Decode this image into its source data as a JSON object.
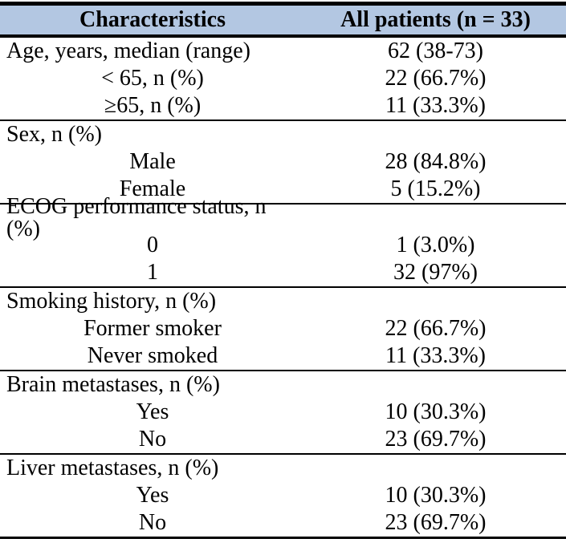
{
  "colors": {
    "header_bg": "#b3c7e2",
    "border": "#000000",
    "text": "#000000"
  },
  "table": {
    "header": {
      "characteristics": "Characteristics",
      "all_patients": "All patients (n = 33)"
    },
    "sections": [
      {
        "name": "age",
        "rows": [
          {
            "label": "Age, years, median (range)",
            "value": "62 (38-73)"
          },
          {
            "label": "< 65, n (%)",
            "value": "22 (66.7%)"
          },
          {
            "label": "≥65, n (%)",
            "value": "11 (33.3%)"
          }
        ]
      },
      {
        "name": "sex",
        "rows": [
          {
            "label": "Sex, n (%)",
            "value": ""
          },
          {
            "label": "Male",
            "value": "28 (84.8%)"
          },
          {
            "label": "Female",
            "value": "5 (15.2%)"
          }
        ]
      },
      {
        "name": "ecog-performance-status",
        "rows": [
          {
            "label": "ECOG performance status, n (%)",
            "value": ""
          },
          {
            "label": "0",
            "value": "1 (3.0%)"
          },
          {
            "label": "1",
            "value": "32 (97%)"
          }
        ]
      },
      {
        "name": "smoking-history",
        "rows": [
          {
            "label": "Smoking history, n (%)",
            "value": ""
          },
          {
            "label": "Former smoker",
            "value": "22 (66.7%)"
          },
          {
            "label": "Never smoked",
            "value": "11 (33.3%)"
          }
        ]
      },
      {
        "name": "brain-metastases",
        "rows": [
          {
            "label": "Brain metastases, n (%)",
            "value": ""
          },
          {
            "label": "Yes",
            "value": "10 (30.3%)"
          },
          {
            "label": "No",
            "value": "23 (69.7%)"
          }
        ]
      },
      {
        "name": "liver-metastases",
        "rows": [
          {
            "label": "Liver metastases, n (%)",
            "value": ""
          },
          {
            "label": "Yes",
            "value": "10 (30.3%)"
          },
          {
            "label": "No",
            "value": "23 (69.7%)"
          }
        ]
      }
    ]
  }
}
